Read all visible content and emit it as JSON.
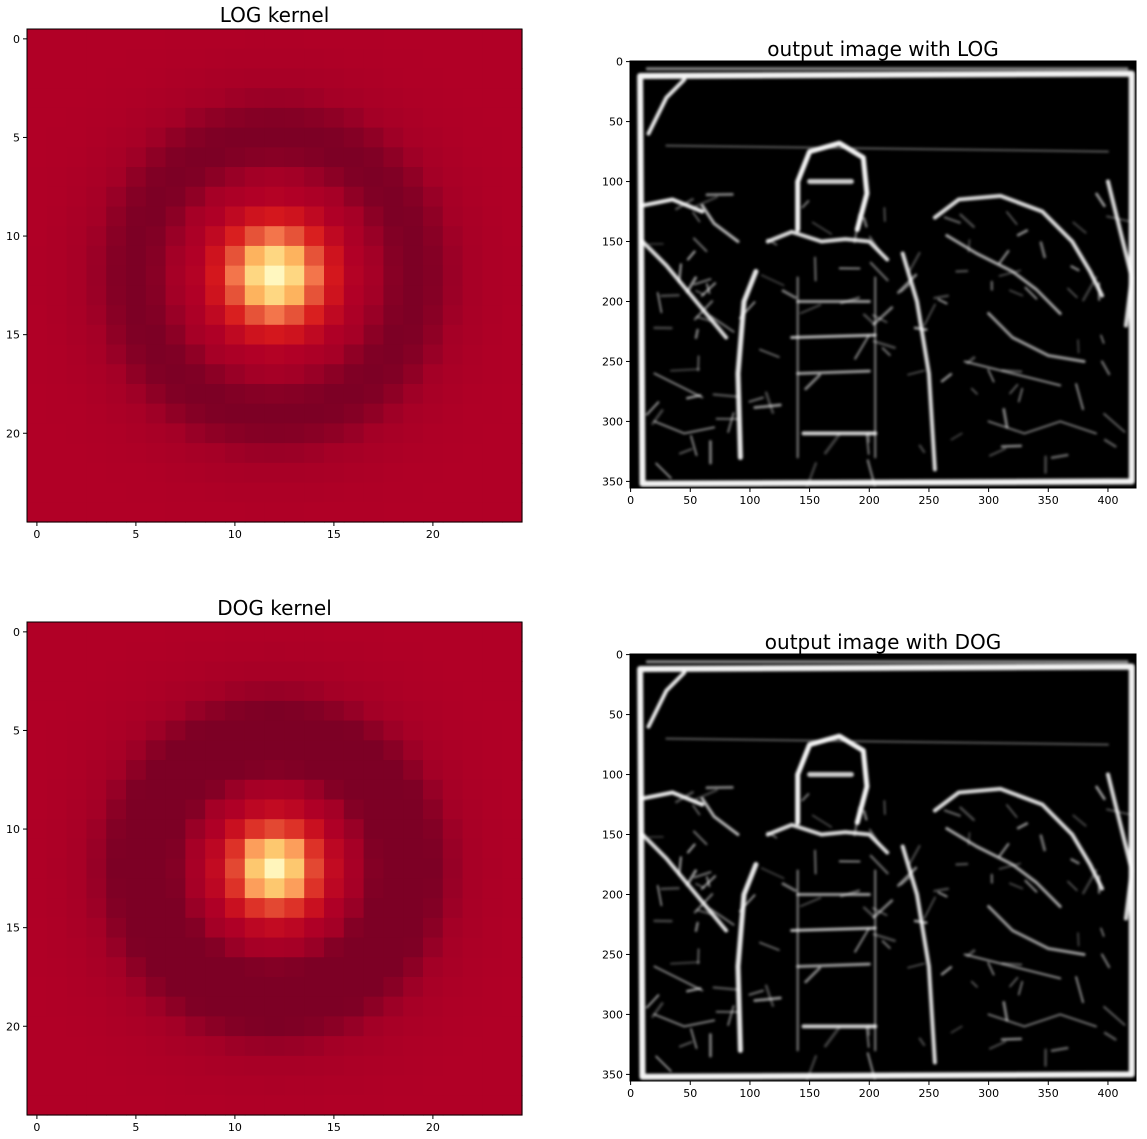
{
  "colors": {
    "kernel_colormap": [
      "#a50026",
      "#b2182b",
      "#d73027",
      "#f46d43",
      "#fdae61",
      "#fee090",
      "#ffffbf"
    ],
    "kernel_dark": "#7d0025",
    "kernel_background": "#b10026",
    "output_background": "#000000",
    "output_edges": "#ffffff"
  },
  "chart_data": [
    {
      "id": "log_kernel",
      "type": "heatmap",
      "title": "LOG kernel",
      "xlabel": "",
      "ylabel": "",
      "grid_size": 25,
      "xlim": [
        -0.5,
        24.5
      ],
      "ylim": [
        24.5,
        -0.5
      ],
      "xticks": [
        0,
        5,
        10,
        15,
        20
      ],
      "yticks": [
        0,
        5,
        10,
        15,
        20
      ],
      "colormap": "YlOrRd_r",
      "center": [
        12,
        12
      ],
      "peak_sigma": 2.0,
      "ring_radius": 7.0,
      "ring_width": 2.2,
      "ring_depth": 0.32,
      "grid": false
    },
    {
      "id": "log_output",
      "type": "heatmap",
      "title": "output image with LOG",
      "xlabel": "",
      "ylabel": "",
      "width": 424,
      "height": 356,
      "xlim": [
        -0.5,
        423.5
      ],
      "ylim": [
        355.5,
        -0.5
      ],
      "xticks": [
        0,
        50,
        100,
        150,
        200,
        250,
        300,
        350,
        400
      ],
      "yticks": [
        0,
        50,
        100,
        150,
        200,
        250,
        300,
        350
      ],
      "colormap": "gray",
      "grid": false
    },
    {
      "id": "dog_kernel",
      "type": "heatmap",
      "title": "DOG kernel",
      "xlabel": "",
      "ylabel": "",
      "grid_size": 25,
      "xlim": [
        -0.5,
        24.5
      ],
      "ylim": [
        24.5,
        -0.5
      ],
      "xticks": [
        0,
        5,
        10,
        15,
        20
      ],
      "yticks": [
        0,
        5,
        10,
        15,
        20
      ],
      "colormap": "YlOrRd_r",
      "center": [
        12,
        12
      ],
      "peak_sigma": 1.8,
      "ring_radius": 6.5,
      "ring_width": 2.4,
      "ring_depth": 0.38,
      "grid": false
    },
    {
      "id": "dog_output",
      "type": "heatmap",
      "title": "output image with DOG",
      "xlabel": "",
      "ylabel": "",
      "width": 424,
      "height": 356,
      "xlim": [
        -0.5,
        423.5
      ],
      "ylim": [
        355.5,
        -0.5
      ],
      "xticks": [
        0,
        50,
        100,
        150,
        200,
        250,
        300,
        350,
        400
      ],
      "yticks": [
        0,
        50,
        100,
        150,
        200,
        250,
        300,
        350
      ],
      "colormap": "gray",
      "grid": false
    }
  ]
}
